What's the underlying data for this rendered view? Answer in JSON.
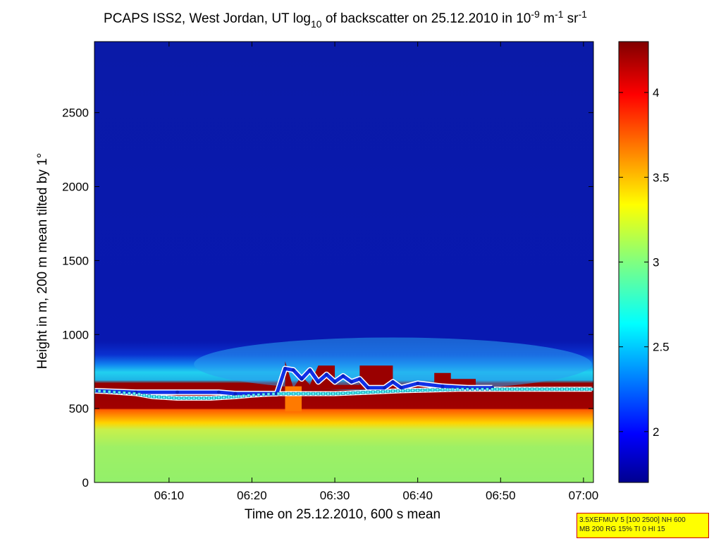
{
  "chart_data": {
    "type": "heatmap",
    "title_parts": {
      "pre": "PCAPS ISS2, West Jordan, UT log",
      "sub": "10",
      "mid": " of backscatter on 25.12.2010 in 10",
      "sup1": "-9",
      "mid2": " m",
      "sup2": "-1",
      "mid3": " sr",
      "sup3": "-1"
    },
    "xlabel": "Time on 25.12.2010, 600 s mean",
    "ylabel": "Height in m, 200 m mean tilted by 1°",
    "x_ticks": [
      "06:10",
      "06:20",
      "06:30",
      "06:40",
      "06:50",
      "07:00"
    ],
    "x_tick_minutes": [
      370,
      380,
      390,
      400,
      410,
      420
    ],
    "xlim_minutes": [
      361,
      421.2
    ],
    "y_ticks": [
      0,
      500,
      1000,
      1500,
      2000,
      2500
    ],
    "ylim": [
      0,
      2980
    ],
    "colorbar": {
      "ticks": [
        2,
        2.5,
        3,
        3.5,
        4
      ],
      "ticklabels": [
        "2",
        "2.5",
        "3",
        "3.5",
        "4"
      ],
      "clim": [
        1.7,
        4.3
      ],
      "colormap": "jet"
    },
    "layers": [
      {
        "name": "surface aerosol layer",
        "y_range_m": [
          0,
          500
        ],
        "log_backscatter": 3.0
      },
      {
        "name": "yellow transition zone",
        "y_range_m": [
          400,
          500
        ],
        "log_backscatter": 3.35
      },
      {
        "name": "dense layer",
        "y_range_m": [
          500,
          700
        ],
        "log_backscatter": 4.3
      },
      {
        "name": "elevated layer",
        "y_range_m": [
          700,
          850
        ],
        "log_backscatter": 2.6
      },
      {
        "name": "free atmosphere",
        "y_range_m": [
          850,
          2980
        ],
        "log_backscatter": 1.8
      }
    ],
    "detected_layer_lines": {
      "cyan_mixing_height": [
        [
          361,
          620
        ],
        [
          366,
          600
        ],
        [
          368,
          580
        ],
        [
          371,
          570
        ],
        [
          375,
          570
        ],
        [
          378,
          580
        ],
        [
          380,
          590
        ],
        [
          383,
          600
        ],
        [
          390,
          600
        ],
        [
          392,
          605
        ],
        [
          398,
          620
        ],
        [
          405,
          630
        ],
        [
          421,
          630
        ]
      ],
      "blue_top": [
        [
          361,
          620
        ],
        [
          366,
          610
        ],
        [
          371,
          610
        ],
        [
          376,
          610
        ],
        [
          378,
          600
        ],
        [
          383,
          600
        ],
        [
          384,
          770
        ],
        [
          385,
          760
        ],
        [
          386,
          700
        ],
        [
          387,
          760
        ],
        [
          388,
          680
        ],
        [
          389,
          730
        ],
        [
          390,
          680
        ],
        [
          391,
          720
        ],
        [
          392,
          680
        ],
        [
          393,
          700
        ],
        [
          394,
          640
        ],
        [
          396,
          640
        ],
        [
          397,
          680
        ],
        [
          398,
          640
        ],
        [
          400,
          670
        ],
        [
          403,
          650
        ],
        [
          406,
          640
        ],
        [
          409,
          640
        ]
      ]
    }
  },
  "info_box": {
    "line1": "3.5XEFMUV 5 [100 2500] NH 600",
    "line2": "MB 200 RG 15% TI 0 HI 15"
  }
}
